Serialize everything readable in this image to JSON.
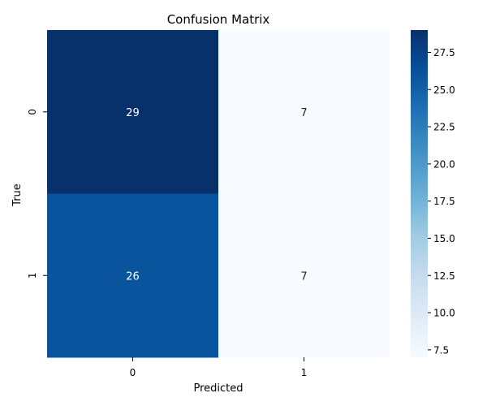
{
  "chart_data": {
    "type": "heatmap",
    "title": "Confusion Matrix",
    "xlabel": "Predicted",
    "ylabel": "True",
    "x_categories": [
      "0",
      "1"
    ],
    "y_categories": [
      "0",
      "1"
    ],
    "values": [
      [
        29,
        7
      ],
      [
        26,
        7
      ]
    ],
    "colormap": "Blues",
    "colorbar": {
      "range": [
        7,
        29
      ],
      "ticks": [
        7.5,
        10.0,
        12.5,
        15.0,
        17.5,
        20.0,
        22.5,
        25.0,
        27.5
      ],
      "tick_labels": [
        "7.5",
        "10.0",
        "12.5",
        "15.0",
        "17.5",
        "20.0",
        "22.5",
        "25.0",
        "27.5"
      ]
    },
    "grid": false,
    "annotations": true
  }
}
